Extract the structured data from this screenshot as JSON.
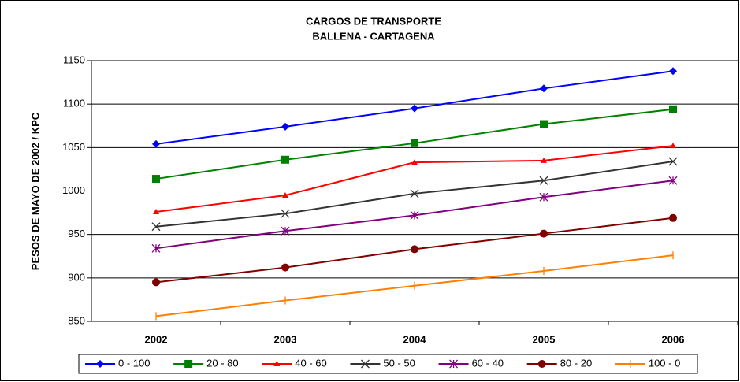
{
  "chart_data": {
    "type": "line",
    "title": "CARGOS DE TRANSPORTE",
    "subtitle": "BALLENA - CARTAGENA",
    "y_label": "PESOS DE MAYO DE 2002  / KPC",
    "categories": [
      "2002",
      "2003",
      "2004",
      "2005",
      "2006"
    ],
    "ylim": [
      850,
      1150
    ],
    "yticks": [
      850,
      900,
      950,
      1000,
      1050,
      1100,
      1150
    ],
    "grid": true,
    "legend": "bottom",
    "series": [
      {
        "name": "0 - 100",
        "color": "#0000ff",
        "marker": "diamond",
        "values": [
          1054,
          1074,
          1095,
          1118,
          1138
        ]
      },
      {
        "name": "20 - 80",
        "color": "#008000",
        "marker": "square",
        "values": [
          1014,
          1036,
          1055,
          1077,
          1094
        ]
      },
      {
        "name": "40 - 60",
        "color": "#ff0000",
        "marker": "triangle",
        "values": [
          976,
          995,
          1033,
          1035,
          1052
        ]
      },
      {
        "name": "50 - 50",
        "color": "#333333",
        "marker": "x",
        "values": [
          959,
          974,
          997,
          1012,
          1034
        ]
      },
      {
        "name": "60 - 40",
        "color": "#800080",
        "marker": "star",
        "values": [
          934,
          954,
          972,
          993,
          1012
        ]
      },
      {
        "name": "80 - 20",
        "color": "#800000",
        "marker": "circle",
        "values": [
          895,
          912,
          933,
          951,
          969
        ]
      },
      {
        "name": "100 - 0",
        "color": "#ff8000",
        "marker": "plus",
        "values": [
          856,
          874,
          891,
          908,
          926
        ]
      }
    ]
  }
}
